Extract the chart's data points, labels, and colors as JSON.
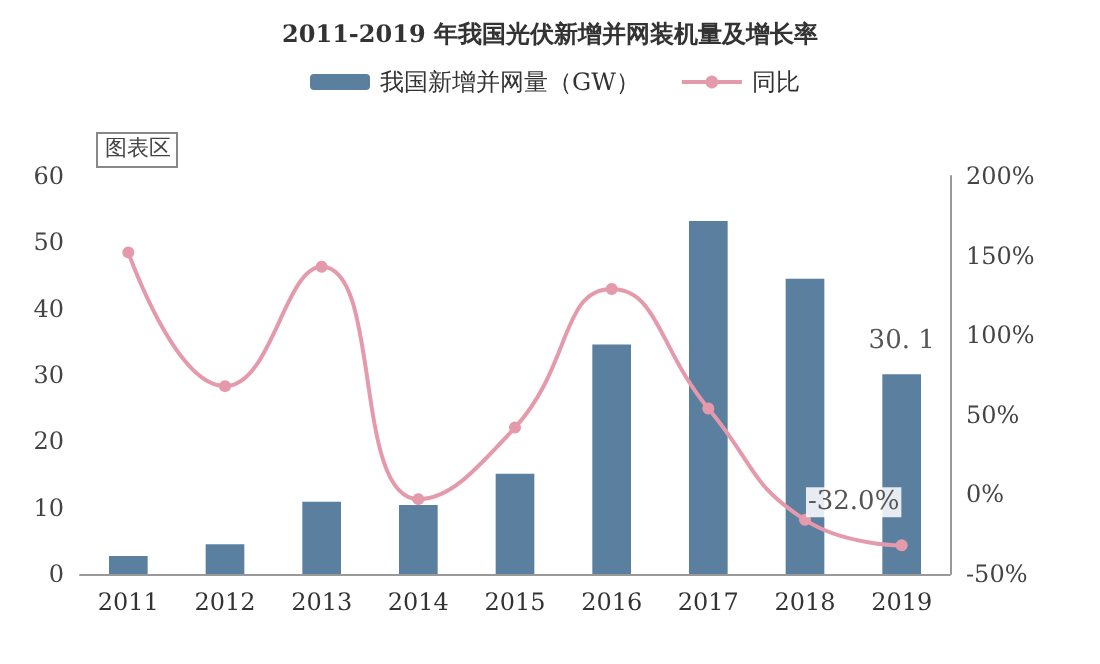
{
  "chart_data": {
    "type": "bar",
    "title": "2011-2019 年我国光伏新增并网装机量及增长率",
    "categories": [
      "2011",
      "2012",
      "2013",
      "2014",
      "2015",
      "2016",
      "2017",
      "2018",
      "2019"
    ],
    "series": [
      {
        "name": "我国新增并网量（GW）",
        "color": "#5b7f9e",
        "values": [
          2.7,
          4.5,
          10.9,
          10.4,
          15.1,
          34.6,
          53.2,
          44.5,
          30.1
        ],
        "value_labels": [
          null,
          null,
          null,
          null,
          null,
          null,
          null,
          null,
          "30. 1"
        ]
      },
      {
        "name": "同比",
        "type": "line",
        "axis": "y2",
        "color": "#e59aab",
        "values": [
          152,
          68,
          143,
          -3,
          42,
          129,
          54,
          -16,
          -32
        ],
        "value_labels": [
          null,
          null,
          null,
          null,
          null,
          null,
          null,
          null,
          "-32.0%"
        ]
      }
    ],
    "ylim": [
      0,
      60
    ],
    "yticks": [
      0,
      10,
      20,
      30,
      40,
      50,
      60
    ],
    "y2lim": [
      -50,
      200
    ],
    "y2ticks": [
      {
        "value": -50,
        "label": "-50%"
      },
      {
        "value": 0,
        "label": "0%"
      },
      {
        "value": 50,
        "label": "50%"
      },
      {
        "value": 100,
        "label": "100%"
      },
      {
        "value": 150,
        "label": "150%"
      },
      {
        "value": 200,
        "label": "200%"
      }
    ],
    "annotations": [
      "图表区"
    ],
    "legend": "top",
    "grid": false,
    "marker": "circle",
    "line_style": "solid"
  }
}
